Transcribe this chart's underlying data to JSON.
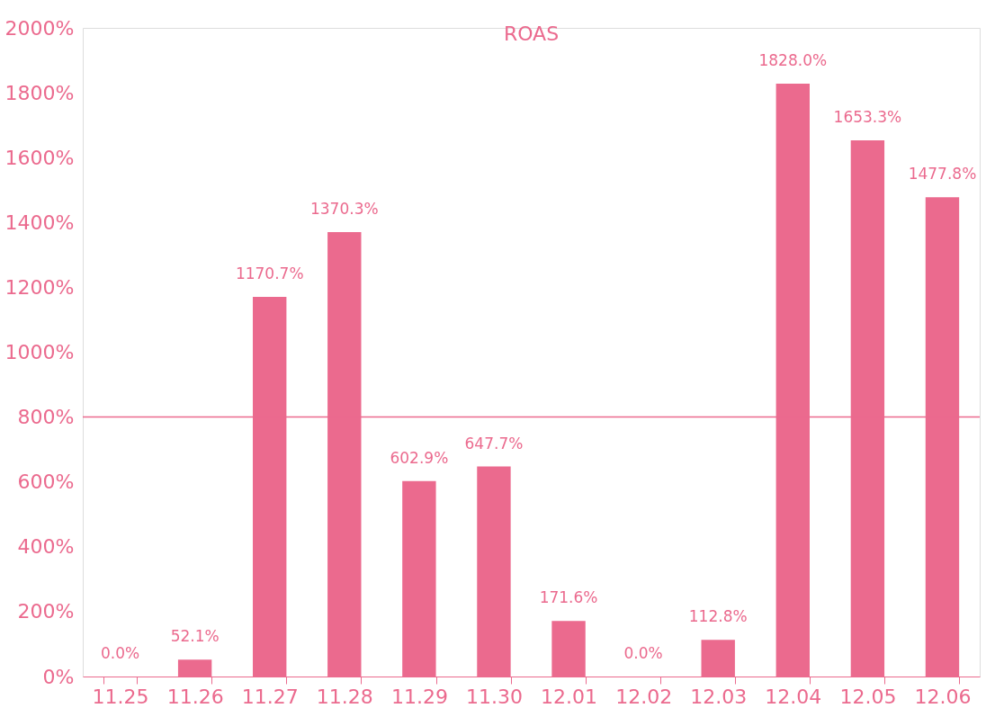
{
  "chart_data": {
    "type": "bar",
    "title": "ROAS",
    "categories": [
      "11.25",
      "11.26",
      "11.27",
      "11.28",
      "11.29",
      "11.30",
      "12.01",
      "12.02",
      "12.03",
      "12.04",
      "12.05",
      "12.06"
    ],
    "values": [
      0.0,
      52.1,
      1170.7,
      1370.3,
      602.9,
      647.7,
      171.6,
      0.0,
      112.8,
      1828.0,
      1653.3,
      1477.8
    ],
    "value_labels": [
      "0.0%",
      "52.1%",
      "1170.7%",
      "1370.3%",
      "602.9%",
      "647.7%",
      "171.6%",
      "0.0%",
      "112.8%",
      "1828.0%",
      "1653.3%",
      "1477.8%"
    ],
    "color": "#eb6a8e",
    "ylim": [
      0,
      2000
    ],
    "yticks": [
      {
        "value": 0,
        "label": "0%"
      },
      {
        "value": 200,
        "label": "200%"
      },
      {
        "value": 400,
        "label": "400%"
      },
      {
        "value": 600,
        "label": "600%"
      },
      {
        "value": 800,
        "label": "800%"
      },
      {
        "value": 1000,
        "label": "1000%"
      },
      {
        "value": 1200,
        "label": "1200%"
      },
      {
        "value": 1400,
        "label": "1400%"
      },
      {
        "value": 1600,
        "label": "1600%"
      },
      {
        "value": 1800,
        "label": "1800%"
      },
      {
        "value": 2000,
        "label": "2000%"
      }
    ],
    "ref_lines": [
      {
        "axis": "y",
        "value": 800,
        "color": "#eb6a8e"
      }
    ],
    "grid": false
  }
}
